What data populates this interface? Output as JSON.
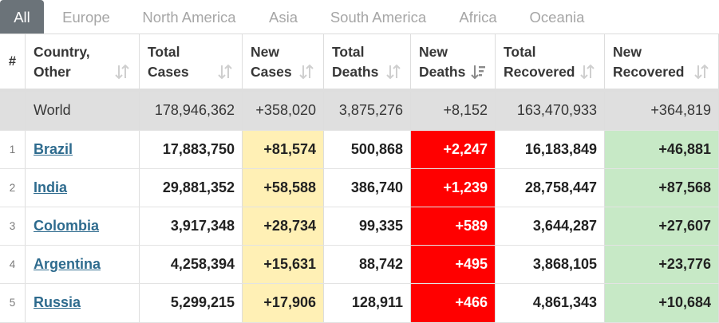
{
  "tabs": [
    "All",
    "Europe",
    "North America",
    "Asia",
    "South America",
    "Africa",
    "Oceania"
  ],
  "columns": [
    {
      "line1": "#",
      "line2": ""
    },
    {
      "line1": "Country,",
      "line2": "Other"
    },
    {
      "line1": "Total",
      "line2": "Cases"
    },
    {
      "line1": "New",
      "line2": "Cases"
    },
    {
      "line1": "Total",
      "line2": "Deaths"
    },
    {
      "line1": "New",
      "line2": "Deaths"
    },
    {
      "line1": "Total",
      "line2": "Recovered"
    },
    {
      "line1": "New",
      "line2": "Recovered"
    }
  ],
  "world": {
    "label": "World",
    "total_cases": "178,946,362",
    "new_cases": "+358,020",
    "total_deaths": "3,875,276",
    "new_deaths": "+8,152",
    "total_recovered": "163,470,933",
    "new_recovered": "+364,819"
  },
  "rows": [
    {
      "rank": "1",
      "country": "Brazil",
      "total_cases": "17,883,750",
      "new_cases": "+81,574",
      "total_deaths": "500,868",
      "new_deaths": "+2,247",
      "total_recovered": "16,183,849",
      "new_recovered": "+46,881"
    },
    {
      "rank": "2",
      "country": "India",
      "total_cases": "29,881,352",
      "new_cases": "+58,588",
      "total_deaths": "386,740",
      "new_deaths": "+1,239",
      "total_recovered": "28,758,447",
      "new_recovered": "+87,568"
    },
    {
      "rank": "3",
      "country": "Colombia",
      "total_cases": "3,917,348",
      "new_cases": "+28,734",
      "total_deaths": "99,335",
      "new_deaths": "+589",
      "total_recovered": "3,644,287",
      "new_recovered": "+27,607"
    },
    {
      "rank": "4",
      "country": "Argentina",
      "total_cases": "4,258,394",
      "new_cases": "+15,631",
      "total_deaths": "88,742",
      "new_deaths": "+495",
      "total_recovered": "3,868,105",
      "new_recovered": "+23,776"
    },
    {
      "rank": "5",
      "country": "Russia",
      "total_cases": "5,299,215",
      "new_cases": "+17,906",
      "total_deaths": "128,911",
      "new_deaths": "+466",
      "total_recovered": "4,861,343",
      "new_recovered": "+10,684"
    }
  ],
  "colors": {
    "active_tab": "#6b7379",
    "new_cases_bg": "#fff0b5",
    "new_deaths_bg": "#ff0000",
    "new_recovered_bg": "#c7e9c6",
    "world_row_bg": "#dfdfdf",
    "link": "#2e6b8e"
  },
  "icons": {
    "sort_default": "sort-arrows-icon",
    "sort_active": "sort-descending-icon"
  }
}
